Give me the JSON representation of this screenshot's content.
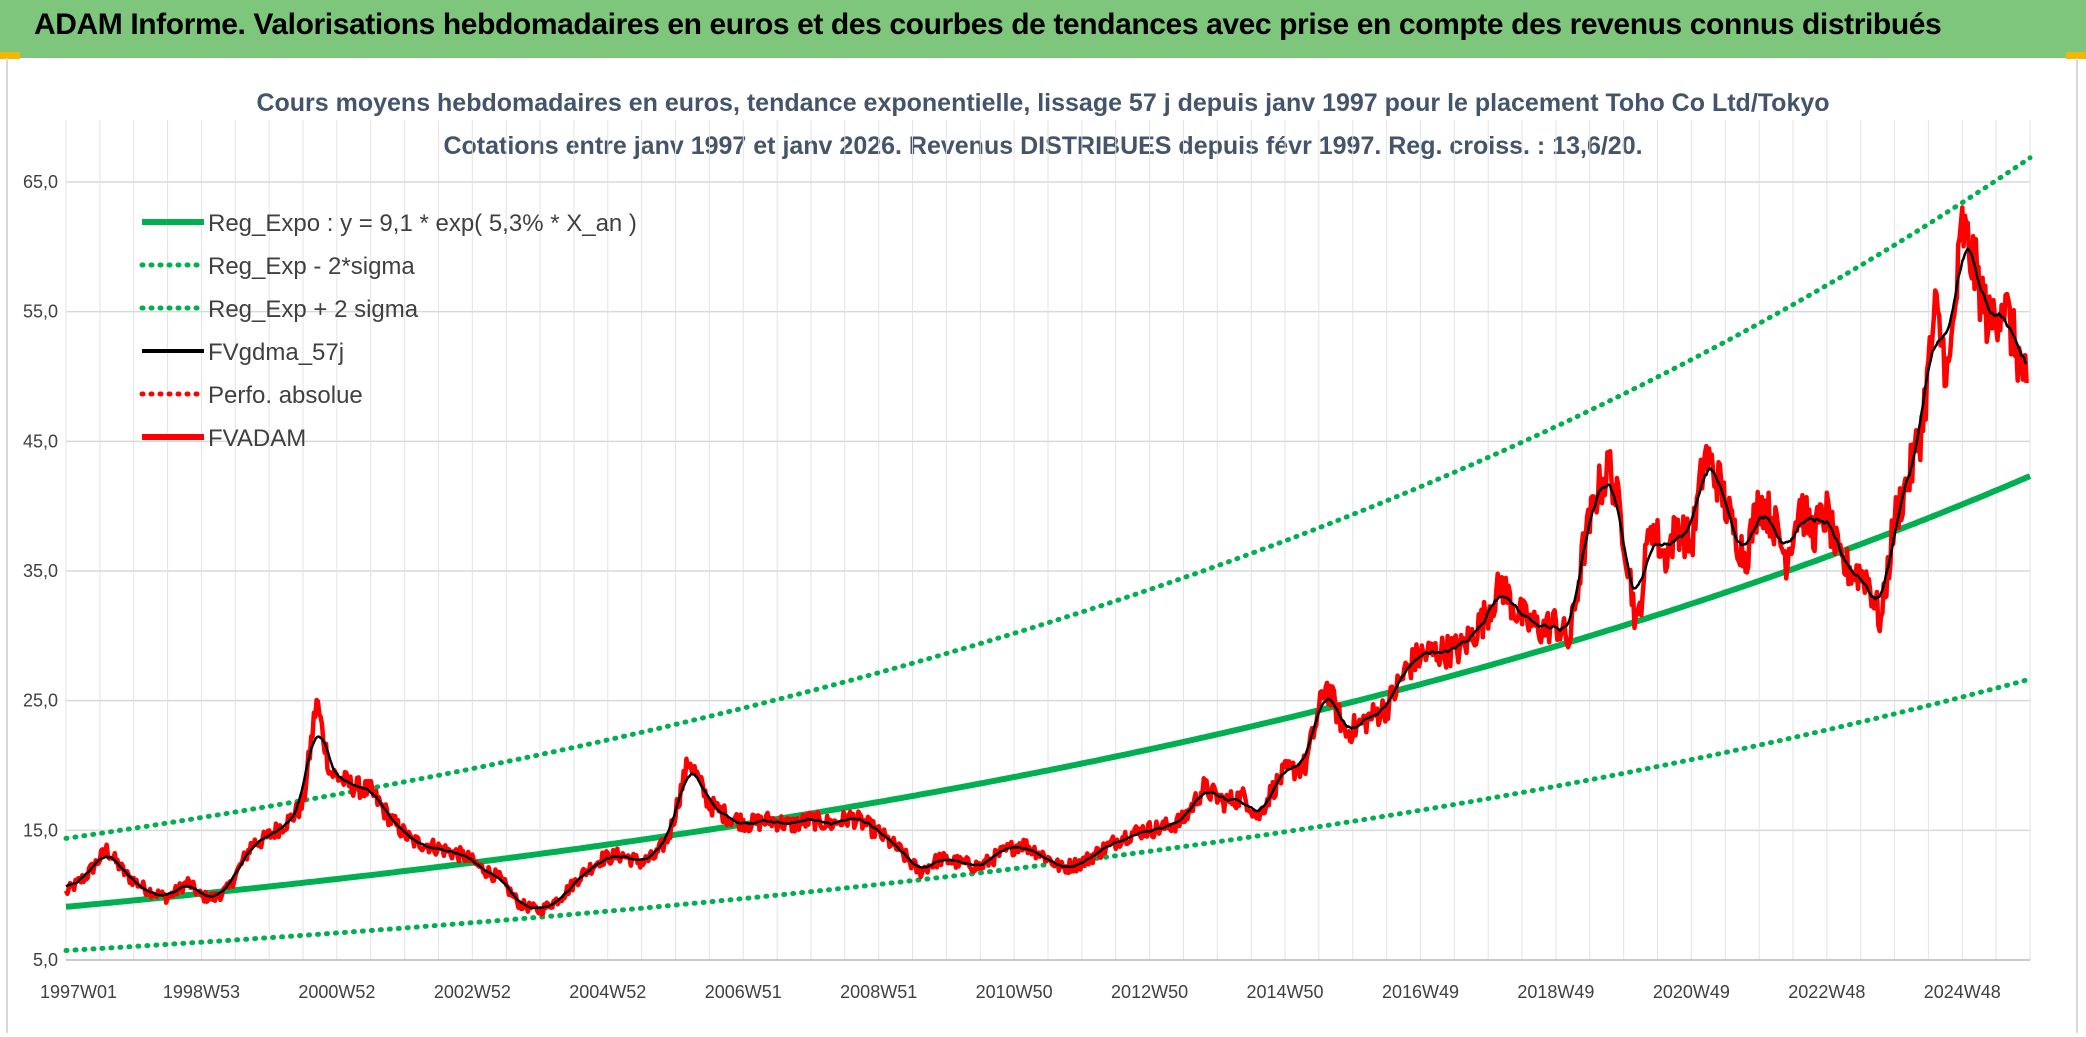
{
  "header": {
    "banner_title": "ADAM Informe. Valorisations hebdomadaires en euros et des courbes de tendances avec prise en compte des revenus connus distribués"
  },
  "colors": {
    "banner_bg": "#7dc67c",
    "regression": "#00b050",
    "smoothed": "#000000",
    "price": "#ff0000",
    "perfo": "#ff0000",
    "accent_corner": "#f5b700"
  },
  "chart_data": {
    "type": "line",
    "title": "Cours moyens hebdomadaires en euros, tendance exponentielle, lissage 57 j depuis janv 1997 pour le placement Toho Co Ltd/Tokyo",
    "subtitle": "Cotations entre janv 1997 et janv 2026. Revenus DISTRIBUES depuis févr 1997. Reg. croiss. : 13,6/20.",
    "xlabel": "",
    "ylabel": "",
    "x_tick_labels": [
      "1997W01",
      "1998W53",
      "2000W52",
      "2002W52",
      "2004W52",
      "2006W51",
      "2008W51",
      "2010W50",
      "2012W50",
      "2014W50",
      "2016W49",
      "2018W49",
      "2020W49",
      "2022W48",
      "2024W48"
    ],
    "y_tick_labels": [
      "5,0",
      "15,0",
      "25,0",
      "35,0",
      "45,0",
      "55,0",
      "65,0"
    ],
    "ylim": [
      5,
      68
    ],
    "xlim": [
      1997.0,
      2026.0
    ],
    "grid": true,
    "legend_position": "top-left",
    "legend": [
      {
        "key": "reg",
        "label": "Reg_Expo : y = 9,1 * exp( 5,3% *  X_an )",
        "style": "solid-thick",
        "color": "#00b050"
      },
      {
        "key": "low",
        "label": "Reg_Exp - 2*sigma",
        "style": "dotted",
        "color": "#00b050"
      },
      {
        "key": "high",
        "label": "Reg_Exp + 2 sigma",
        "style": "dotted",
        "color": "#00b050"
      },
      {
        "key": "mma",
        "label": "FVgdma_57j",
        "style": "solid",
        "color": "#000000"
      },
      {
        "key": "perfo",
        "label": "Perfo. absolue",
        "style": "dotted",
        "color": "#ff0000"
      },
      {
        "key": "price",
        "label": "FVADAM",
        "style": "solid-thick",
        "color": "#ff0000"
      }
    ],
    "regression": {
      "a": 9.1,
      "rate": 0.053,
      "x0": 1997.0
    },
    "band": {
      "lower_factor": 0.63,
      "upper_factor": 1.58
    },
    "series": [
      {
        "name": "FVADAM",
        "x": [
          1997.0,
          1997.3,
          1997.6,
          1997.9,
          1998.2,
          1998.5,
          1998.8,
          1999.0,
          1999.2,
          1999.4,
          1999.55,
          1999.65,
          1999.75,
          1999.9,
          2000.1,
          2000.3,
          2000.5,
          2000.7,
          2000.9,
          2001.2,
          2001.5,
          2001.8,
          2002.1,
          2002.4,
          2002.7,
          2002.9,
          2003.1,
          2003.4,
          2003.7,
          2004.0,
          2004.3,
          2004.6,
          2004.9,
          2005.2,
          2005.4,
          2005.5,
          2005.7,
          2005.9,
          2006.2,
          2006.5,
          2006.8,
          2007.1,
          2007.4,
          2007.7,
          2008.0,
          2008.3,
          2008.6,
          2008.8,
          2009.0,
          2009.3,
          2009.6,
          2009.9,
          2010.2,
          2010.5,
          2010.8,
          2011.1,
          2011.4,
          2011.7,
          2012.0,
          2012.3,
          2012.6,
          2012.9,
          2013.2,
          2013.5,
          2013.8,
          2014.1,
          2014.4,
          2014.6,
          2014.8,
          2015.0,
          2015.3,
          2015.6,
          2015.9,
          2016.2,
          2016.5,
          2016.8,
          2017.0,
          2017.3,
          2017.6,
          2017.9,
          2018.2,
          2018.4,
          2018.6,
          2018.8,
          2019.0,
          2019.2,
          2019.4,
          2019.6,
          2019.8,
          2020.0,
          2020.2,
          2020.4,
          2020.6,
          2020.8,
          2021.0,
          2021.2,
          2021.4,
          2021.6,
          2021.8,
          2022.0,
          2022.2,
          2022.4,
          2022.6,
          2022.8,
          2023.0,
          2023.2,
          2023.4,
          2023.6,
          2023.8,
          2024.0,
          2024.2,
          2024.4,
          2024.6,
          2024.8,
          2025.0,
          2025.2,
          2025.4,
          2025.6,
          2025.8,
          2025.95
        ],
        "values": [
          10.2,
          11.5,
          13.5,
          11.5,
          10.4,
          9.8,
          11.0,
          9.9,
          9.8,
          10.5,
          12.0,
          13.0,
          14.0,
          14.2,
          15.0,
          15.8,
          17.0,
          25.0,
          19.5,
          18.5,
          18.0,
          15.8,
          14.2,
          13.8,
          13.3,
          13.0,
          12.2,
          11.3,
          9.3,
          8.8,
          9.8,
          11.5,
          12.8,
          13.1,
          12.7,
          12.5,
          13.0,
          14.5,
          20.5,
          17.0,
          16.0,
          15.5,
          15.8,
          15.4,
          15.8,
          15.5,
          16.0,
          15.5,
          14.8,
          13.5,
          11.8,
          12.8,
          12.5,
          12.2,
          13.2,
          14.0,
          13.2,
          12.1,
          12.5,
          13.5,
          14.5,
          15.0,
          15.2,
          15.8,
          18.3,
          17.2,
          17.6,
          16.0,
          18.0,
          19.5,
          20.0,
          26.3,
          22.5,
          23.5,
          24.5,
          27.5,
          28.5,
          28.8,
          29.0,
          31.0,
          34.0,
          32.0,
          31.0,
          30.5,
          31.0,
          29.5,
          36.5,
          41.0,
          43.0,
          38.0,
          30.5,
          39.0,
          36.0,
          38.5,
          37.0,
          44.0,
          42.0,
          38.5,
          36.0,
          40.5,
          39.0,
          36.0,
          40.0,
          38.0,
          39.5,
          35.5,
          35.0,
          34.5,
          31.0,
          39.0,
          42.0,
          46.0,
          55.0,
          50.0,
          61.5,
          58.0,
          54.0,
          56.0,
          52.0,
          49.5
        ]
      }
    ]
  }
}
